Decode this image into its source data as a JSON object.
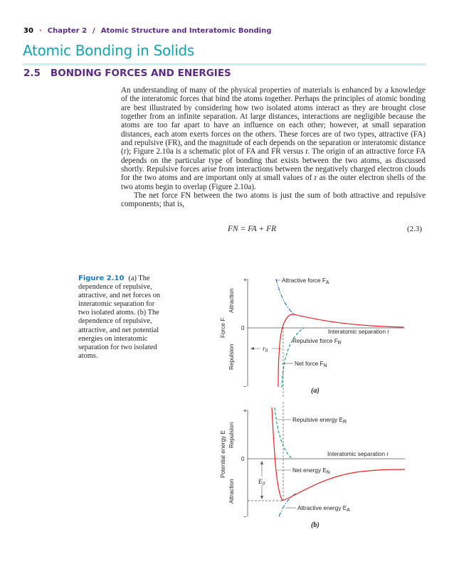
{
  "running_head": {
    "page_number": "30",
    "chapter": "Chapter 2",
    "separator": "/",
    "chapter_title": "Atomic Structure and Interatomic Bonding"
  },
  "title": "Atomic Bonding in Solids",
  "section": {
    "number": "2.5",
    "title": "BONDING FORCES AND ENERGIES"
  },
  "paragraphs": [
    "An understanding of many of the physical properties of materials is enhanced by a knowledge of the interatomic forces that bind the atoms together. Perhaps the principles of atomic bonding are best illustrated by considering how two isolated atoms interact as they are brought close together from an infinite separation. At large distances, interactions are negligible because the atoms are too far apart to have an influence on each other; however, at small separation distances, each atom exerts forces on the others. These forces are of two types, attractive (FA) and repulsive (FR), and the magnitude of each depends on the separation or interatomic distance (r); Figure 2.10a is a schematic plot of FA and FR versus r. The origin of an attractive force FA depends on the particular type of bonding that exists between the two atoms, as discussed shortly. Repulsive forces arise from interactions between the negatively charged electron clouds for the two atoms and are important only at small values of r as the outer electron shells of the two atoms begin to overlap (Figure 2.10a).",
    "The net force FN between the two atoms is just the sum of both attractive and repulsive components; that is,"
  ],
  "equation": {
    "text": "FN = FA + FR",
    "number": "(2.3)"
  },
  "caption": {
    "label": "Figure 2.10",
    "text": "(a) The dependence of repulsive, attractive, and net forces on interatomic separation for two isolated atoms. (b) The dependence of repulsive, attractive, and net potential energies on interatomic separation for two isolated atoms."
  },
  "figure_a": {
    "panel": "(a)",
    "plus": "+",
    "minus": "−",
    "zero": "0",
    "ylabel": "Force F",
    "up": "Attraction",
    "down": "Repulsion",
    "xlabel": "Interatomic separation r",
    "attractive": {
      "text": "Attractive force F",
      "sub": "A"
    },
    "repulsive": {
      "text": "Repulsive force F",
      "sub": "R"
    },
    "net": {
      "text": "Net force F",
      "sub": "N"
    },
    "r0": {
      "text": "r",
      "sub": "0"
    },
    "colors": {
      "net": "#e8232a",
      "attractive": "#1f6fc0",
      "repulsive": "#12956f"
    }
  },
  "figure_b": {
    "panel": "(b)",
    "plus": "+",
    "minus": "−",
    "zero": "0",
    "ylabel": "Potential energy E",
    "up": "Repulsion",
    "down": "Attraction",
    "xlabel": "Interatomic separation r",
    "repulsive": {
      "text": "Repulsive energy E",
      "sub": "R"
    },
    "net": {
      "text": "Net energy E",
      "sub": "N"
    },
    "attractive": {
      "text": "Attractive energy E",
      "sub": "A"
    },
    "e0": {
      "text": "E",
      "sub": "0"
    }
  }
}
